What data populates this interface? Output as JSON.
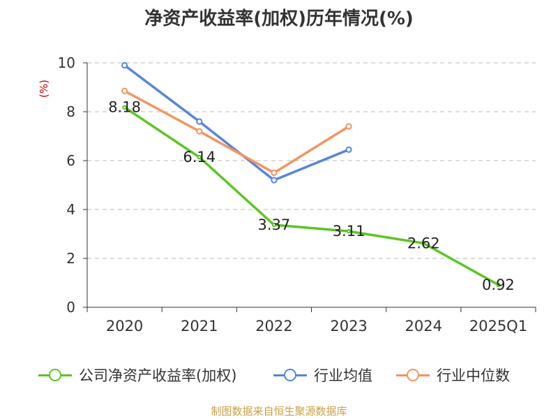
{
  "chart_data": {
    "type": "line",
    "title": "净资产收益率(加权)历年情况(%)",
    "ylabel": "(%)",
    "xlabel": "",
    "categories": [
      "2020",
      "2021",
      "2022",
      "2023",
      "2024",
      "2025Q1"
    ],
    "ylim": [
      0,
      10
    ],
    "yticks": [
      0,
      2,
      4,
      6,
      8,
      10
    ],
    "series": [
      {
        "name": "公司净资产收益率(加权)",
        "color": "#5cc523",
        "values": [
          8.18,
          6.14,
          3.37,
          3.11,
          2.62,
          0.92
        ],
        "labels": [
          "8.18",
          "6.14",
          "3.37",
          "3.11",
          "2.62",
          "0.92"
        ]
      },
      {
        "name": "行业均值",
        "color": "#5585dc",
        "values": [
          9.9,
          7.6,
          5.2,
          6.45,
          null,
          null
        ]
      },
      {
        "name": "行业中位数",
        "color": "#f69360",
        "values": [
          8.85,
          7.2,
          5.5,
          7.4,
          null,
          null
        ]
      }
    ],
    "grid": true,
    "legend": "bottom"
  },
  "source": "制图数据来自恒生聚源数据库"
}
